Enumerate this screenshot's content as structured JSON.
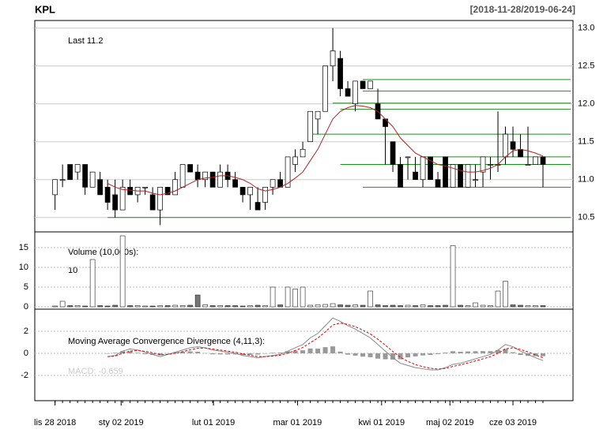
{
  "chart_data": {
    "type": "candlestick",
    "title": "KPL",
    "subtitle": "[2018-11-28/2019-06-24]",
    "last_label": "Last 11.2",
    "xlim": [
      -2.7,
      69
    ],
    "xticks": [
      {
        "value": 0,
        "label": "lis 28 2018"
      },
      {
        "value": 8.8,
        "label": "sty 02 2019"
      },
      {
        "value": 21.1,
        "label": "lut 01 2019"
      },
      {
        "value": 32.3,
        "label": "mar 01 2019"
      },
      {
        "value": 43.5,
        "label": "kwi 01 2019"
      },
      {
        "value": 52.6,
        "label": "maj 02 2019"
      },
      {
        "value": 61,
        "label": "cze 03 2019"
      }
    ],
    "ylim": [
      10.31,
      13.1
    ],
    "yticks": [
      {
        "value": 13,
        "label": "13.0"
      },
      12.5,
      {
        "value": 12,
        "label": "12.0"
      },
      11.5,
      {
        "value": 11,
        "label": "11.0"
      },
      10.5
    ],
    "up_color": "#ffffff",
    "down_color": "#000000",
    "sma_color": "#b22222",
    "level_color": "#228b22",
    "candles": [
      [
        10.8,
        11.0,
        10.6,
        11.0
      ],
      [
        11.0,
        11.2,
        10.9,
        11.0
      ],
      [
        11.2,
        11.2,
        11.0,
        11.0
      ],
      [
        11.1,
        11.2,
        11.0,
        11.2
      ],
      [
        11.2,
        11.2,
        10.8,
        10.9
      ],
      [
        10.9,
        11.1,
        10.9,
        11.1
      ],
      [
        11.0,
        11.1,
        10.8,
        10.8
      ],
      [
        10.9,
        11.0,
        10.6,
        10.7
      ],
      [
        10.8,
        11.0,
        10.5,
        10.6
      ],
      [
        10.6,
        11.0,
        10.6,
        10.9
      ],
      [
        10.9,
        11.0,
        10.8,
        10.8
      ],
      [
        10.8,
        10.9,
        10.7,
        10.9
      ],
      [
        10.9,
        10.9,
        10.8,
        10.9
      ],
      [
        10.8,
        10.9,
        10.6,
        10.6
      ],
      [
        10.6,
        10.9,
        10.4,
        10.9
      ],
      [
        10.9,
        10.9,
        10.8,
        10.8
      ],
      [
        10.8,
        11.1,
        10.8,
        11.0
      ],
      [
        10.9,
        11.2,
        10.9,
        11.2
      ],
      [
        11.2,
        11.2,
        11.1,
        11.1
      ],
      [
        11.1,
        11.2,
        10.9,
        11.0
      ],
      [
        11.0,
        11.1,
        10.9,
        11.1
      ],
      [
        11.1,
        11.1,
        10.9,
        10.9
      ],
      [
        10.9,
        11.2,
        10.9,
        11.1
      ],
      [
        11.1,
        11.2,
        10.9,
        11.0
      ],
      [
        11.0,
        11.1,
        10.9,
        10.9
      ],
      [
        10.9,
        10.9,
        10.7,
        10.8
      ],
      [
        10.8,
        10.9,
        10.6,
        10.9
      ],
      [
        10.7,
        10.9,
        10.6,
        10.6
      ],
      [
        10.7,
        10.9,
        10.6,
        10.9
      ],
      [
        10.9,
        11.0,
        10.8,
        11.0
      ],
      [
        11.0,
        11.1,
        10.9,
        10.9
      ],
      [
        10.9,
        11.3,
        10.9,
        11.3
      ],
      [
        11.2,
        11.4,
        11.1,
        11.3
      ],
      [
        11.3,
        11.5,
        11.3,
        11.4
      ],
      [
        11.5,
        11.9,
        11.5,
        11.9
      ],
      [
        11.8,
        11.9,
        11.6,
        11.9
      ],
      [
        11.9,
        12.5,
        11.9,
        12.5
      ],
      [
        12.5,
        13.0,
        12.3,
        12.7
      ],
      [
        12.6,
        12.7,
        12.1,
        12.2
      ],
      [
        12.2,
        12.3,
        12.1,
        12.1
      ],
      [
        12.0,
        12.3,
        11.9,
        12.3
      ],
      [
        12.3,
        12.3,
        12.2,
        12.2
      ],
      [
        12.2,
        12.3,
        12.2,
        12.3
      ],
      [
        12.0,
        12.2,
        11.8,
        11.8
      ],
      [
        11.8,
        11.8,
        11.2,
        11.7
      ],
      [
        11.5,
        11.5,
        11.1,
        11.2
      ],
      [
        11.2,
        11.3,
        10.9,
        10.9
      ],
      [
        11.3,
        11.3,
        11.0,
        11.3
      ],
      [
        11.1,
        11.3,
        11.0,
        11.0
      ],
      [
        11.0,
        11.3,
        10.9,
        11.3
      ],
      [
        11.3,
        11.3,
        11.0,
        11.0
      ],
      [
        11.0,
        11.1,
        10.9,
        10.9
      ],
      [
        11.3,
        11.3,
        10.9,
        10.9
      ],
      [
        10.9,
        11.2,
        10.9,
        11.2
      ],
      [
        11.2,
        11.2,
        10.9,
        10.9
      ],
      [
        10.9,
        11.2,
        10.9,
        11.2
      ],
      [
        11.0,
        11.2,
        10.9,
        11.0
      ],
      [
        11.1,
        11.3,
        10.9,
        11.3
      ],
      [
        11.2,
        11.3,
        11.0,
        11.2
      ],
      [
        11.2,
        11.9,
        11.1,
        11.2
      ],
      [
        11.3,
        11.7,
        11.2,
        11.6
      ],
      [
        11.5,
        11.7,
        11.3,
        11.4
      ],
      [
        11.4,
        11.6,
        11.3,
        11.3
      ],
      [
        11.2,
        11.7,
        11.2,
        11.2
      ],
      [
        11.2,
        11.3,
        11.2,
        11.3
      ],
      [
        11.3,
        11.3,
        10.9,
        11.2
      ]
    ],
    "sma": [
      null,
      null,
      null,
      null,
      null,
      null,
      null,
      10.95,
      10.9,
      10.87,
      10.86,
      10.85,
      10.85,
      10.82,
      10.8,
      10.82,
      10.85,
      10.9,
      10.95,
      11.0,
      11.02,
      11.03,
      11.05,
      11.05,
      11.03,
      11.0,
      10.95,
      10.88,
      10.85,
      10.87,
      10.9,
      10.95,
      11.02,
      11.1,
      11.25,
      11.4,
      11.6,
      11.8,
      11.9,
      11.95,
      11.98,
      11.97,
      11.95,
      11.9,
      11.8,
      11.7,
      11.55,
      11.45,
      11.35,
      11.3,
      11.25,
      11.2,
      11.18,
      11.15,
      11.12,
      11.1,
      11.1,
      11.12,
      11.15,
      11.2,
      11.3,
      11.38,
      11.4,
      11.38,
      11.35,
      11.31
    ],
    "levels": [
      {
        "value": 10.5,
        "start": 7
      },
      {
        "value": 10.9,
        "start": 41
      },
      {
        "value": 11.2,
        "start": 38
      },
      {
        "value": 11.3,
        "start": 49
      },
      {
        "value": 11.6,
        "start": 34
      },
      {
        "value": 11.93,
        "start": 38
      },
      {
        "value": 12.01,
        "start": 37
      },
      {
        "value": 12.17,
        "start": 41
      },
      {
        "value": 12.32,
        "start": 41
      }
    ],
    "volume_label": "Volume (10,000s):",
    "volume_last": "10",
    "volume": [
      0.2,
      1.4,
      0.3,
      0.3,
      0.2,
      12,
      0.3,
      0.2,
      0.4,
      18,
      0.3,
      0.3,
      0.2,
      0.2,
      0.3,
      0.3,
      0.4,
      0.3,
      0.4,
      3,
      0.5,
      0.3,
      0.3,
      0.3,
      0.3,
      0.2,
      0.3,
      0.4,
      0.3,
      5,
      0.5,
      5,
      4.5,
      5,
      0.4,
      0.5,
      0.6,
      0.8,
      0.5,
      0.4,
      0.5,
      0.4,
      4,
      0.5,
      0.3,
      0.4,
      0.3,
      0.4,
      0.3,
      0.5,
      0.3,
      0.3,
      0.4,
      15.5,
      0.4,
      0.3,
      1,
      0.4,
      0.3,
      4,
      6.5,
      0.5,
      0.4,
      0.3,
      0.3,
      0.3
    ],
    "volume_ylim": [
      -0.6,
      19
    ],
    "volume_yticks": [
      0,
      5,
      10,
      15
    ],
    "macd_label": "Moving Average Convergence Divergence (4,11,3):",
    "macd_value_label": "MACD: -0.659",
    "macd_ylim": [
      -4.29,
      4
    ],
    "macd_yticks": [
      -2,
      0,
      2
    ],
    "macd": [
      null,
      null,
      null,
      null,
      null,
      null,
      null,
      -0.3,
      -0.2,
      0.2,
      0.4,
      0.3,
      0.1,
      -0.1,
      -0.3,
      -0.1,
      0.1,
      0.3,
      0.5,
      0.6,
      0.5,
      0.3,
      0.2,
      0.1,
      0.0,
      -0.2,
      -0.3,
      -0.4,
      -0.3,
      -0.2,
      -0.1,
      0.2,
      0.5,
      0.8,
      1.4,
      1.8,
      2.5,
      3.2,
      2.9,
      2.5,
      2.2,
      1.8,
      1.4,
      0.8,
      0.2,
      -0.4,
      -0.9,
      -1.1,
      -1.3,
      -1.4,
      -1.5,
      -1.5,
      -1.3,
      -1.0,
      -0.9,
      -0.7,
      -0.5,
      -0.3,
      -0.1,
      0.3,
      0.8,
      0.6,
      0.2,
      -0.1,
      -0.4,
      -0.66
    ],
    "macd_signal": [
      null,
      null,
      null,
      null,
      null,
      null,
      null,
      -0.3,
      -0.25,
      0.0,
      0.2,
      0.25,
      0.18,
      0.05,
      -0.12,
      -0.11,
      0.0,
      0.15,
      0.32,
      0.46,
      0.48,
      0.39,
      0.3,
      0.2,
      0.1,
      -0.05,
      -0.17,
      -0.29,
      -0.3,
      -0.25,
      -0.17,
      0.01,
      0.26,
      0.53,
      0.96,
      1.38,
      1.94,
      2.57,
      2.74,
      2.62,
      2.41,
      2.1,
      1.75,
      1.28,
      0.74,
      0.17,
      -0.36,
      -0.73,
      -1.02,
      -1.21,
      -1.35,
      -1.43,
      -1.37,
      -1.19,
      -1.04,
      -0.87,
      -0.69,
      -0.5,
      -0.3,
      0.0,
      0.4,
      0.5,
      0.35,
      0.13,
      -0.14,
      -0.4
    ],
    "macd_hist": [
      null,
      null,
      null,
      null,
      null,
      null,
      null,
      0,
      0.05,
      0.2,
      0.2,
      0.05,
      -0.08,
      -0.15,
      -0.18,
      0.01,
      0.1,
      0.15,
      0.18,
      0.14,
      0.02,
      -0.09,
      -0.1,
      -0.1,
      -0.1,
      -0.15,
      -0.13,
      -0.11,
      0,
      0.05,
      0.07,
      0.19,
      0.24,
      0.27,
      0.44,
      0.42,
      0.56,
      0.63,
      0.16,
      -0.12,
      -0.21,
      -0.3,
      -0.35,
      -0.48,
      -0.54,
      -0.57,
      -0.54,
      -0.37,
      -0.28,
      -0.19,
      -0.15,
      -0.07,
      0.07,
      0.19,
      0.14,
      0.17,
      0.19,
      0.2,
      0.2,
      0.3,
      0.4,
      0.1,
      -0.15,
      -0.23,
      -0.26,
      -0.26
    ]
  }
}
